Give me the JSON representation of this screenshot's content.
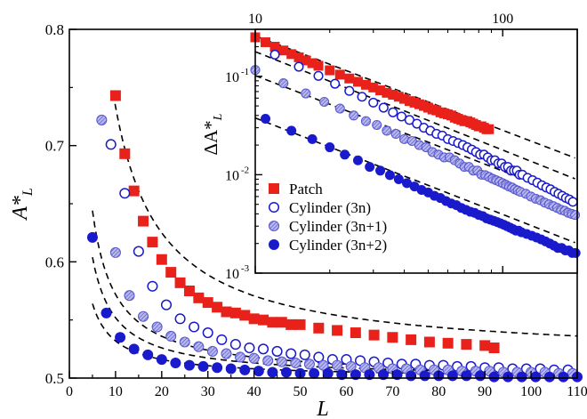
{
  "chart_data": [
    {
      "type": "scatter",
      "panel": "main",
      "xlabel": "L",
      "ylabel": "A*",
      "ylabel_sub": "L",
      "xlim": [
        0,
        110
      ],
      "ylim": [
        0.5,
        0.8
      ],
      "xticks": [
        0,
        10,
        20,
        30,
        40,
        50,
        60,
        70,
        80,
        90,
        100,
        110
      ],
      "yticks": [
        0.5,
        0.6,
        0.7,
        0.8
      ],
      "series": [
        {
          "key": "patch",
          "marker": "square",
          "color": "#e8221b",
          "x": [
            10,
            12,
            14,
            16,
            18,
            20,
            22,
            24,
            26,
            28,
            30,
            32,
            34,
            36,
            38,
            40,
            42,
            44,
            46,
            48,
            50,
            54,
            58,
            62,
            66,
            70,
            74,
            78,
            82,
            86,
            90,
            92
          ],
          "y": [
            0.743,
            0.693,
            0.661,
            0.635,
            0.617,
            0.602,
            0.591,
            0.582,
            0.575,
            0.569,
            0.565,
            0.561,
            0.557,
            0.556,
            0.554,
            0.551,
            0.55,
            0.548,
            0.548,
            0.546,
            0.546,
            0.543,
            0.541,
            0.539,
            0.537,
            0.535,
            0.533,
            0.531,
            0.53,
            0.529,
            0.528,
            0.526
          ]
        },
        {
          "key": "cyl3n",
          "marker": "circle-open",
          "color": "#1a1acd",
          "x": [
            9,
            12,
            15,
            18,
            21,
            24,
            27,
            30,
            33,
            36,
            39,
            42,
            45,
            48,
            51,
            54,
            57,
            60,
            63,
            66,
            69,
            72,
            75,
            78,
            81,
            84,
            87,
            90,
            93,
            96,
            99,
            102,
            105,
            108
          ],
          "y": [
            0.701,
            0.659,
            0.609,
            0.579,
            0.563,
            0.551,
            0.544,
            0.539,
            0.533,
            0.529,
            0.526,
            0.525,
            0.523,
            0.521,
            0.52,
            0.518,
            0.516,
            0.516,
            0.515,
            0.514,
            0.513,
            0.512,
            0.512,
            0.511,
            0.511,
            0.51,
            0.51,
            0.509,
            0.509,
            0.508,
            0.508,
            0.508,
            0.507,
            0.507
          ]
        },
        {
          "key": "cyl3n1",
          "marker": "circle-hatched",
          "color": "#8c8ce0",
          "x": [
            7,
            10,
            13,
            16,
            19,
            22,
            25,
            28,
            31,
            34,
            37,
            40,
            43,
            46,
            49,
            52,
            55,
            58,
            61,
            64,
            67,
            70,
            73,
            76,
            79,
            82,
            85,
            88,
            91,
            94,
            97,
            100,
            103,
            106,
            109
          ],
          "y": [
            0.722,
            0.608,
            0.571,
            0.553,
            0.544,
            0.536,
            0.531,
            0.527,
            0.523,
            0.521,
            0.518,
            0.517,
            0.515,
            0.514,
            0.513,
            0.512,
            0.511,
            0.511,
            0.51,
            0.509,
            0.509,
            0.508,
            0.508,
            0.507,
            0.507,
            0.507,
            0.506,
            0.506,
            0.506,
            0.505,
            0.505,
            0.505,
            0.505,
            0.504,
            0.504
          ]
        },
        {
          "key": "cyl3n2",
          "marker": "circle-filled",
          "color": "#1a1acd",
          "x": [
            5,
            8,
            11,
            14,
            17,
            20,
            23,
            26,
            29,
            32,
            35,
            38,
            41,
            44,
            47,
            50,
            53,
            56,
            59,
            62,
            65,
            68,
            71,
            74,
            77,
            80,
            83,
            86,
            89,
            92,
            95,
            98,
            101,
            104,
            107,
            110
          ],
          "y": [
            0.621,
            0.556,
            0.535,
            0.525,
            0.52,
            0.516,
            0.513,
            0.511,
            0.51,
            0.509,
            0.508,
            0.507,
            0.506,
            0.505,
            0.505,
            0.504,
            0.504,
            0.504,
            0.503,
            0.503,
            0.503,
            0.503,
            0.503,
            0.502,
            0.502,
            0.502,
            0.502,
            0.502,
            0.502,
            0.501,
            0.501,
            0.501,
            0.501,
            0.501,
            0.501,
            0.501
          ]
        }
      ],
      "fits": [
        {
          "a": 0.5165,
          "b": 2.17,
          "c": 1.0,
          "x_range": [
            9.5,
            110
          ]
        },
        {
          "a": 0.5,
          "b": 0.72,
          "c": 1.0,
          "x_range": [
            5,
            110
          ]
        },
        {
          "a": 0.5,
          "b": 0.52,
          "c": 1.0,
          "x_range": [
            5,
            110
          ]
        },
        {
          "a": 0.5,
          "b": 0.32,
          "c": 1.0,
          "x_range": [
            5,
            110
          ]
        }
      ]
    },
    {
      "type": "scatter",
      "panel": "inset",
      "scale": "log-log",
      "ylabel": "ΔA*",
      "ylabel_sub": "L",
      "xlim": [
        10,
        200
      ],
      "ylim": [
        0.001,
        0.3
      ],
      "xticks": [
        10,
        100
      ],
      "xtick_labels": [
        "10",
        "100"
      ],
      "yticks": [
        0.001,
        0.01,
        0.1
      ],
      "ytick_labels": [
        "10",
        "10",
        "10"
      ],
      "ytick_exponents": [
        "-3",
        "-2",
        "-1"
      ],
      "legend_position": "lower-left",
      "legend": [
        {
          "key": "patch",
          "label": "Patch"
        },
        {
          "key": "cyl3n",
          "label": "Cylinder (3n)"
        },
        {
          "key": "cyl3n1",
          "label": "Cylinder (3n+1)"
        },
        {
          "key": "cyl3n2",
          "label": "Cylinder (3n+2)"
        }
      ],
      "series": [
        {
          "key": "patch",
          "marker": "square",
          "color": "#e8221b",
          "x": [
            10,
            11,
            12,
            13,
            14,
            15,
            16,
            17,
            18,
            20,
            22,
            24,
            26,
            28,
            30,
            32,
            34,
            36,
            38,
            40,
            42,
            44,
            46,
            48,
            50,
            52,
            54,
            56,
            58,
            60,
            62,
            64,
            66,
            68,
            70,
            72,
            74,
            76,
            78,
            80,
            82,
            84,
            86,
            88
          ],
          "y": [
            0.249,
            0.222,
            0.2,
            0.183,
            0.168,
            0.156,
            0.145,
            0.136,
            0.128,
            0.115,
            0.104,
            0.095,
            0.088,
            0.082,
            0.077,
            0.072,
            0.068,
            0.065,
            0.062,
            0.059,
            0.056,
            0.054,
            0.052,
            0.05,
            0.048,
            0.046,
            0.045,
            0.043,
            0.042,
            0.041,
            0.04,
            0.038,
            0.037,
            0.036,
            0.035,
            0.035,
            0.034,
            0.033,
            0.032,
            0.031,
            0.031,
            0.03,
            0.029,
            0.029
          ]
        },
        {
          "key": "cyl3n",
          "marker": "circle-open",
          "color": "#1a1acd",
          "x": [
            12,
            15,
            18,
            21,
            24,
            27,
            30,
            33,
            36,
            39,
            42,
            45,
            48,
            51,
            54,
            57,
            60,
            63,
            66,
            69,
            72,
            75,
            78,
            81,
            84,
            87,
            90,
            93,
            96,
            99,
            102,
            105,
            108,
            111,
            114,
            117,
            120,
            126,
            132,
            138,
            144,
            150,
            156,
            162,
            168,
            174,
            180,
            186,
            192
          ],
          "y": [
            0.166,
            0.125,
            0.101,
            0.084,
            0.071,
            0.062,
            0.054,
            0.048,
            0.043,
            0.039,
            0.036,
            0.033,
            0.03,
            0.028,
            0.026,
            0.025,
            0.023,
            0.022,
            0.021,
            0.02,
            0.019,
            0.018,
            0.017,
            0.016,
            0.016,
            0.015,
            0.014,
            0.014,
            0.013,
            0.013,
            0.012,
            0.012,
            0.011,
            0.011,
            0.011,
            0.01,
            0.01,
            0.0093,
            0.0088,
            0.0083,
            0.0078,
            0.0074,
            0.0071,
            0.0067,
            0.0064,
            0.0061,
            0.0058,
            0.0056,
            0.0053
          ]
        },
        {
          "key": "cyl3n1",
          "marker": "circle-hatched",
          "color": "#8c8ce0",
          "x": [
            10,
            13,
            16,
            19,
            22,
            25,
            28,
            31,
            34,
            37,
            40,
            43,
            46,
            49,
            52,
            55,
            58,
            61,
            64,
            67,
            70,
            73,
            76,
            79,
            82,
            85,
            88,
            91,
            94,
            97,
            100,
            103,
            106,
            109,
            112,
            115,
            118,
            124,
            130,
            136,
            142,
            148,
            154,
            160,
            166,
            172,
            178,
            184,
            190,
            196
          ],
          "y": [
            0.116,
            0.085,
            0.067,
            0.055,
            0.047,
            0.04,
            0.035,
            0.032,
            0.028,
            0.026,
            0.023,
            0.022,
            0.02,
            0.019,
            0.017,
            0.016,
            0.015,
            0.015,
            0.014,
            0.013,
            0.012,
            0.012,
            0.011,
            0.011,
            0.01,
            0.0099,
            0.0095,
            0.0091,
            0.0088,
            0.0085,
            0.0082,
            0.0079,
            0.0076,
            0.0074,
            0.0071,
            0.0069,
            0.0067,
            0.0064,
            0.006,
            0.0057,
            0.0055,
            0.0052,
            0.005,
            0.0048,
            0.0046,
            0.0044,
            0.0043,
            0.0041,
            0.004,
            0.0039
          ]
        },
        {
          "key": "cyl3n2",
          "marker": "circle-filled",
          "color": "#1a1acd",
          "x": [
            11,
            14,
            17,
            20,
            23,
            26,
            29,
            32,
            35,
            38,
            41,
            44,
            47,
            50,
            53,
            56,
            59,
            62,
            65,
            68,
            71,
            74,
            77,
            80,
            83,
            86,
            89,
            92,
            95,
            98,
            101,
            104,
            107,
            110,
            113,
            116,
            119,
            125,
            131,
            137,
            143,
            149,
            155,
            161,
            167,
            173,
            179,
            185,
            191,
            197
          ],
          "y": [
            0.037,
            0.028,
            0.023,
            0.019,
            0.016,
            0.014,
            0.012,
            0.011,
            0.0099,
            0.009,
            0.0082,
            0.0076,
            0.007,
            0.0066,
            0.0061,
            0.0058,
            0.0054,
            0.0051,
            0.0049,
            0.0046,
            0.0044,
            0.0042,
            0.0041,
            0.0039,
            0.0038,
            0.0036,
            0.0035,
            0.0034,
            0.0033,
            0.0032,
            0.0031,
            0.003,
            0.0029,
            0.0028,
            0.0027,
            0.0027,
            0.0026,
            0.0025,
            0.0024,
            0.0023,
            0.0022,
            0.0021,
            0.002,
            0.0019,
            0.0018,
            0.0018,
            0.0017,
            0.0017,
            0.0016,
            0.0016
          ]
        }
      ],
      "fits": [
        {
          "k": 2.35,
          "p": 0.96,
          "x_range": [
            10,
            200
          ]
        },
        {
          "k": 1.78,
          "p": 1.0,
          "x_range": [
            10,
            200
          ]
        },
        {
          "k": 0.95,
          "p": 0.97,
          "x_range": [
            10,
            200
          ]
        },
        {
          "k": 0.36,
          "p": 0.98,
          "x_range": [
            10,
            200
          ]
        }
      ]
    }
  ]
}
